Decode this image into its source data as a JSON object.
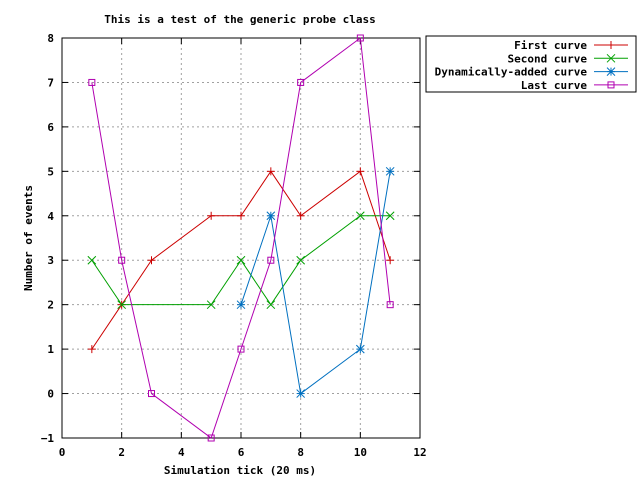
{
  "chart_data": {
    "type": "line",
    "title": "This is a test of the generic probe class",
    "xlabel": "Simulation tick (20 ms)",
    "ylabel": "Number of events",
    "xlim": [
      0,
      12
    ],
    "ylim": [
      -1,
      8
    ],
    "x_ticks": [
      0,
      2,
      4,
      6,
      8,
      10,
      12
    ],
    "y_ticks": [
      -1,
      0,
      1,
      2,
      3,
      4,
      5,
      6,
      7,
      8
    ],
    "x_tick_labels": [
      "0",
      "2",
      "4",
      "6",
      "8",
      "10",
      "12"
    ],
    "y_tick_labels": [
      "−1",
      "0",
      "1",
      "2",
      "3",
      "4",
      "5",
      "6",
      "7",
      "8"
    ],
    "grid": true,
    "legend_position": "outside-right-top",
    "series": [
      {
        "name": "First curve",
        "color": "#cc0000",
        "marker": "plus",
        "points": [
          [
            1,
            1
          ],
          [
            2,
            2
          ],
          [
            3,
            3
          ],
          [
            5,
            4
          ],
          [
            6,
            4
          ],
          [
            7,
            5
          ],
          [
            8,
            4
          ],
          [
            10,
            5
          ],
          [
            11,
            3
          ]
        ]
      },
      {
        "name": "Second curve",
        "color": "#00a000",
        "marker": "cross",
        "points": [
          [
            1,
            3
          ],
          [
            2,
            2
          ],
          [
            5,
            2
          ],
          [
            6,
            3
          ],
          [
            7,
            2
          ],
          [
            8,
            3
          ],
          [
            10,
            4
          ],
          [
            11,
            4
          ]
        ]
      },
      {
        "name": "Dynamically-added curve",
        "color": "#0070c0",
        "marker": "star",
        "points": [
          [
            6,
            2
          ],
          [
            7,
            4
          ],
          [
            8,
            0
          ],
          [
            10,
            1
          ],
          [
            11,
            5
          ]
        ]
      },
      {
        "name": "Last curve",
        "color": "#b000b0",
        "marker": "square",
        "points": [
          [
            1,
            7
          ],
          [
            2,
            3
          ],
          [
            3,
            0
          ],
          [
            5,
            -1
          ],
          [
            6,
            1
          ],
          [
            7,
            3
          ],
          [
            8,
            7
          ],
          [
            10,
            8
          ],
          [
            11,
            2
          ]
        ]
      }
    ]
  }
}
